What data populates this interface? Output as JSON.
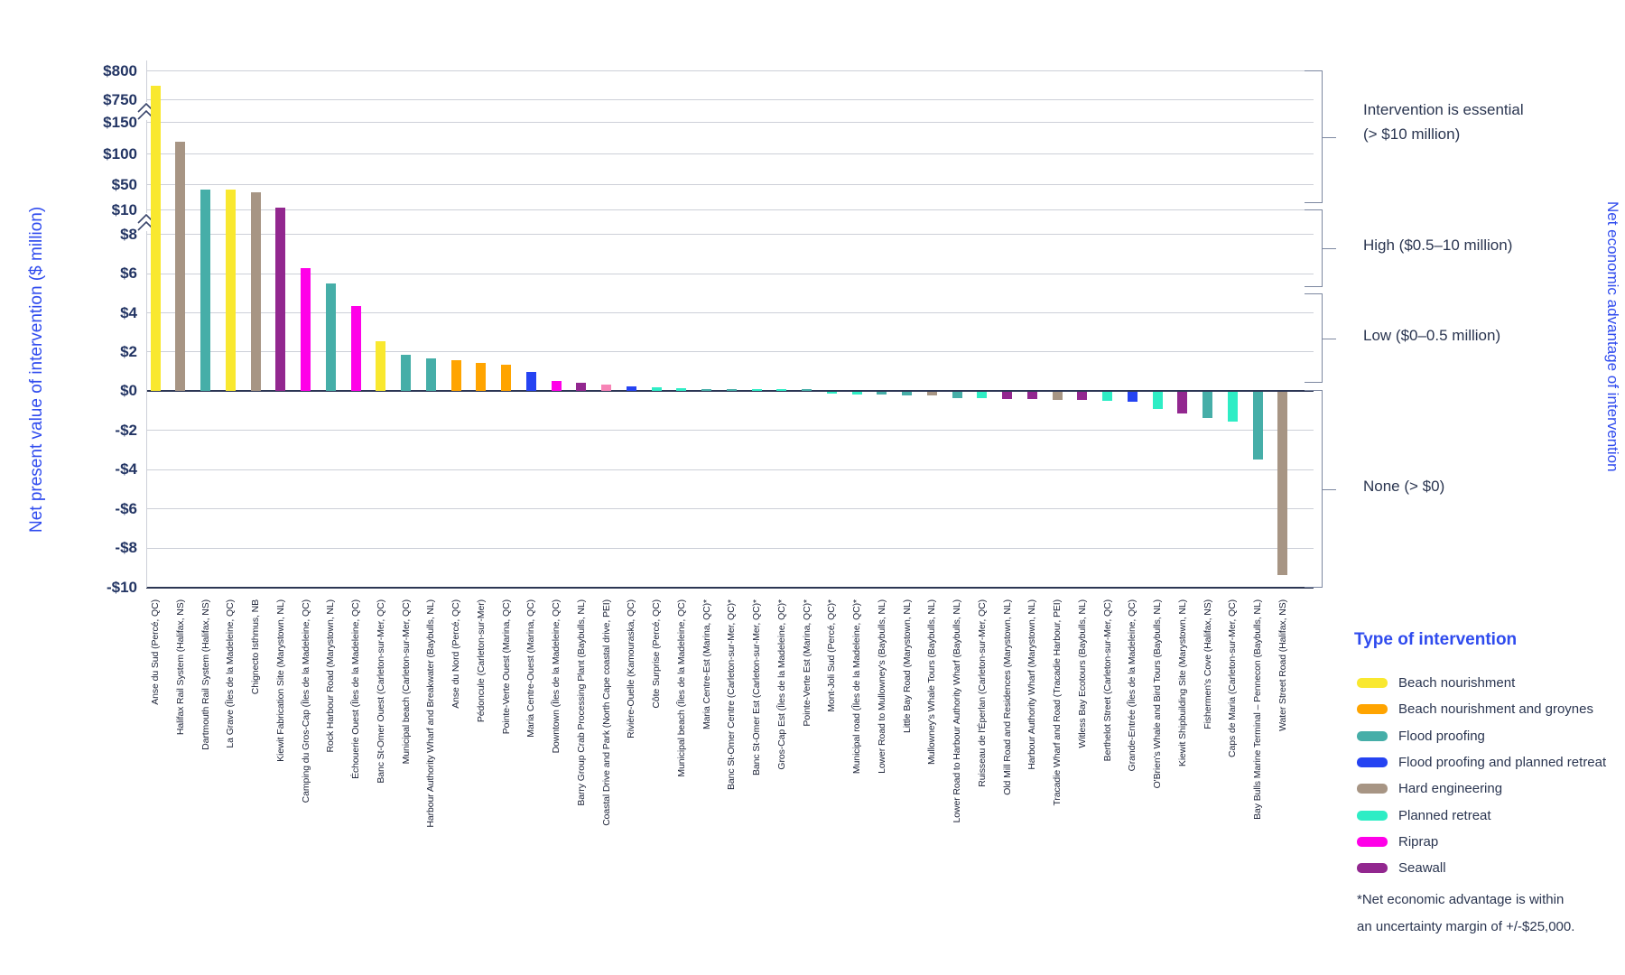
{
  "chart_data": {
    "type": "bar",
    "ylabel": "Net present value of intervention ($ million)",
    "right_ylabel": "Net economic advantage of intervention",
    "y_tick_labels": [
      "$800",
      "$750",
      "$150",
      "$100",
      "$50",
      "$10",
      "$8",
      "$6",
      "$4",
      "$2",
      "$0",
      "-$2",
      "-$4",
      "-$6",
      "-$8",
      "-$10"
    ],
    "y_axis_breaks": [
      "between $750 and $150",
      "between $10 and $8"
    ],
    "palette": {
      "beach_nourishment": "#F9E82F",
      "beach_nourishment_and_groynes": "#FFA400",
      "flood_proofing": "#46AEA8",
      "flood_proofing_and_planned_retreat": "#2543F2",
      "hard_engineering": "#A79584",
      "planned_retreat": "#2EEDC5",
      "riprap": "#FF00E8",
      "riprap_light": "#F784B6",
      "seawall": "#92278F"
    },
    "bars": [
      {
        "label": "Anse du Sud (Percé, QC)",
        "type": "beach_nourishment",
        "value": 775
      },
      {
        "label": "Halifax Rail System (Halifax, NS)",
        "type": "hard_engineering",
        "value": 120
      },
      {
        "label": "Dartmouth Rail System (Halifax, NS)",
        "type": "flood_proofing",
        "value": 43
      },
      {
        "label": "La Grave (Îles de la Madeleine, QC)",
        "type": "beach_nourishment",
        "value": 43
      },
      {
        "label": "Chignecto Isthmus, NB",
        "type": "hard_engineering",
        "value": 39
      },
      {
        "label": "Kiewit Fabrication Site (Marystown, NL)",
        "type": "seawall",
        "value": 15
      },
      {
        "label": "Camping du Gros-Cap (Îles de la Madeleine, QC)",
        "type": "riprap",
        "value": 6.3
      },
      {
        "label": "Rock Harbour Road (Marystown, NL)",
        "type": "flood_proofing",
        "value": 5.5
      },
      {
        "label": "Échouerie Ouest (Îles de la Madeleine, QC)",
        "type": "riprap",
        "value": 4.35
      },
      {
        "label": "Banc St-Omer Ouest (Carleton-sur-Mer, QC)",
        "type": "beach_nourishment",
        "value": 2.55
      },
      {
        "label": "Municipal beach (Carleton-sur-Mer, QC)",
        "type": "flood_proofing",
        "value": 1.85
      },
      {
        "label": "Harbour Authority Wharf and Breakwater (Baybulls, NL)",
        "type": "flood_proofing",
        "value": 1.65
      },
      {
        "label": "Anse du Nord (Percé, QC)",
        "type": "beach_nourishment_and_groynes",
        "value": 1.55
      },
      {
        "label": "Pédoncule (Carleton-sur-Mer)",
        "type": "beach_nourishment_and_groynes",
        "value": 1.45
      },
      {
        "label": "Pointe-Verte Ouest (Marina, QC)",
        "type": "beach_nourishment_and_groynes",
        "value": 1.35
      },
      {
        "label": "Maria Centre-Ouest (Marina, QC)",
        "type": "flood_proofing_and_planned_retreat",
        "value": 0.95
      },
      {
        "label": "Downtown (Îles de la Madeleine, QC)",
        "type": "riprap",
        "value": 0.5
      },
      {
        "label": "Barry Group Crab Processing Plant (Baybulls, NL)",
        "type": "seawall",
        "value": 0.42
      },
      {
        "label": "Coastal Drive and Park (North Cape coastal drive, PEI)",
        "type": "riprap_light",
        "value": 0.33
      },
      {
        "label": "Rivière-Ouelle (Kamouraska, QC)",
        "type": "flood_proofing_and_planned_retreat",
        "value": 0.25
      },
      {
        "label": "Côte Surprise (Percé, QC)",
        "type": "planned_retreat",
        "value": 0.2
      },
      {
        "label": "Municipal beach (Îles de la Madeleine, QC)",
        "type": "planned_retreat",
        "value": 0.12
      },
      {
        "label": "Maria Centre-Est (Marina, QC)*",
        "type": "flood_proofing",
        "value": 0.1
      },
      {
        "label": "Banc St-Omer Centre (Carleton-sur-Mer, QC)*",
        "type": "flood_proofing",
        "value": 0.09
      },
      {
        "label": "Banc St-Omer Est (Carleton-sur-Mer, QC)*",
        "type": "planned_retreat",
        "value": 0.08
      },
      {
        "label": "Gros-Cap Est (Îles de la Madeleine, QC)*",
        "type": "planned_retreat",
        "value": 0.07
      },
      {
        "label": "Pointe-Verte Est (Marina, QC)*",
        "type": "flood_proofing",
        "value": 0.06
      },
      {
        "label": "Mont-Joli Sud (Percé, QC)*",
        "type": "planned_retreat",
        "value": -0.1
      },
      {
        "label": "Municipal road (Îles de la Madeleine, QC)*",
        "type": "planned_retreat",
        "value": -0.12
      },
      {
        "label": "Lower Road to Mullowney's (Baybulls, NL)",
        "type": "flood_proofing",
        "value": -0.15
      },
      {
        "label": "Little Bay Road (Marystown, NL)",
        "type": "flood_proofing",
        "value": -0.17
      },
      {
        "label": "Mullowney's Whale Tours (Baybulls, NL)",
        "type": "hard_engineering",
        "value": -0.2
      },
      {
        "label": "Lower Road to Harbour Authority Wharf (Baybulls, NL)",
        "type": "flood_proofing",
        "value": -0.3
      },
      {
        "label": "Ruisseau de l'Éperlan (Carleton-sur-Mer, QC)",
        "type": "planned_retreat",
        "value": -0.3
      },
      {
        "label": "Old Mill Road and Residences (Marystown, NL)",
        "type": "seawall",
        "value": -0.35
      },
      {
        "label": "Harbour Authority Wharf (Marystown, NL)",
        "type": "seawall",
        "value": -0.35
      },
      {
        "label": "Tracadie Wharf and Road (Tracadie Harbour, PEI)",
        "type": "hard_engineering",
        "value": -0.4
      },
      {
        "label": "Witless Bay Ecotours (Baybulls, NL)",
        "type": "seawall",
        "value": -0.4
      },
      {
        "label": "Berthelot Street (Carleton-sur-Mer, QC)",
        "type": "planned_retreat",
        "value": -0.45
      },
      {
        "label": "Grande-Entrée (Îles de la Madeleine, QC)",
        "type": "flood_proofing_and_planned_retreat",
        "value": -0.5
      },
      {
        "label": "O'Brien's Whale and Bird Tours (Baybulls, NL)",
        "type": "planned_retreat",
        "value": -0.85
      },
      {
        "label": "Kiewit Shipbuilding Site (Marystown, NL)",
        "type": "seawall",
        "value": -1.1
      },
      {
        "label": "Fishermen's Cove (Halifax, NS)",
        "type": "flood_proofing",
        "value": -1.35
      },
      {
        "label": "Caps de Maria (Carleton-sur-Mer, QC)",
        "type": "planned_retreat",
        "value": -1.5
      },
      {
        "label": "Bay Bulls Marine Terminal – Pennecon (Baybulls, NL)",
        "type": "flood_proofing",
        "value": -3.45
      },
      {
        "label": "Water Street Road (Halifax, NS)",
        "type": "hard_engineering",
        "value": -9.3
      }
    ],
    "advantage_bands": [
      {
        "lines": [
          "Intervention is essential",
          "(> $10 million)"
        ]
      },
      {
        "lines": [
          "High ($0.5–10 million)"
        ]
      },
      {
        "lines": [
          "Low ($0–0.5 million)"
        ]
      },
      {
        "lines": [
          "None (> $0)"
        ]
      }
    ]
  },
  "legend": {
    "title": "Type of intervention",
    "items": [
      {
        "label": "Beach nourishment",
        "type": "beach_nourishment"
      },
      {
        "label": "Beach nourishment and groynes",
        "type": "beach_nourishment_and_groynes"
      },
      {
        "label": "Flood proofing",
        "type": "flood_proofing"
      },
      {
        "label": "Flood proofing and planned retreat",
        "type": "flood_proofing_and_planned_retreat"
      },
      {
        "label": "Hard engineering",
        "type": "hard_engineering"
      },
      {
        "label": "Planned retreat",
        "type": "planned_retreat"
      },
      {
        "label": "Riprap",
        "type": "riprap"
      },
      {
        "label": "Seawall",
        "type": "seawall"
      }
    ]
  },
  "footnote": {
    "line1": "*Net economic advantage is within",
    "line2": "an uncertainty margin of +/-$25,000."
  }
}
